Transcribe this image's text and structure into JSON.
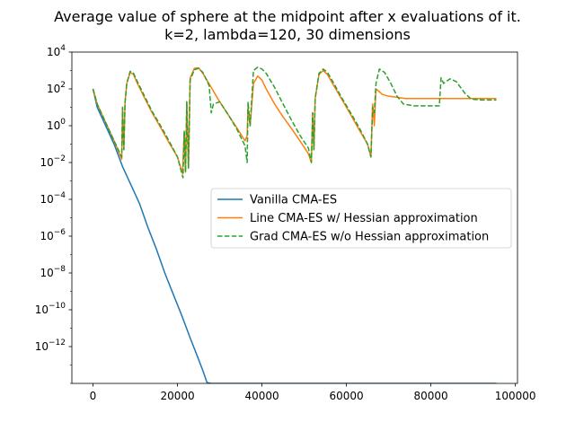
{
  "chart_data": {
    "type": "line",
    "title": "Average value of sphere at the midpoint after x evaluations of it.",
    "subtitle": "k=2, lambda=120, 30 dimensions",
    "xlabel": "",
    "ylabel": "",
    "xlim": [
      -5000,
      100500
    ],
    "ylim": [
      1e-14,
      10000.0
    ],
    "yscale": "log",
    "grid": false,
    "legend_position": "center-right",
    "x_ticks": [
      0,
      20000,
      40000,
      60000,
      80000,
      100000
    ],
    "x_tick_labels": [
      "0",
      "20000",
      "40000",
      "60000",
      "80000",
      "100000"
    ],
    "y_ticks": [
      {
        "exp": 4,
        "base": "10",
        "sup": "4"
      },
      {
        "exp": 2,
        "base": "10",
        "sup": "2"
      },
      {
        "exp": 0,
        "base": "10",
        "sup": "0"
      },
      {
        "exp": -2,
        "base": "10",
        "sup": "−2"
      },
      {
        "exp": -4,
        "base": "10",
        "sup": "−4"
      },
      {
        "exp": -6,
        "base": "10",
        "sup": "−6"
      },
      {
        "exp": -8,
        "base": "10",
        "sup": "−8"
      },
      {
        "exp": -10,
        "base": "10",
        "sup": "−10"
      },
      {
        "exp": -12,
        "base": "10",
        "sup": "−12"
      }
    ],
    "series": [
      {
        "name": "Vanilla CMA-ES",
        "color": "#1f77b4",
        "style": "solid",
        "points": [
          [
            0,
            100
          ],
          [
            1000,
            10
          ],
          [
            3000,
            1
          ],
          [
            5000,
            0.1
          ],
          [
            7000,
            0.006
          ],
          [
            9000,
            0.0006
          ],
          [
            11000,
            6e-05
          ],
          [
            13000,
            3e-06
          ],
          [
            15000,
            2e-07
          ],
          [
            17000,
            1e-08
          ],
          [
            19000,
            7e-10
          ],
          [
            21000,
            5e-11
          ],
          [
            23000,
            3e-12
          ],
          [
            25000,
            2e-13
          ],
          [
            26000,
            5e-14
          ],
          [
            27000,
            1.1e-14
          ],
          [
            28000,
            1e-14
          ],
          [
            95500,
            1e-14
          ]
        ]
      },
      {
        "name": "Line CMA-ES w/ Hessian approximation",
        "color": "#ff7f0e",
        "style": "solid",
        "points": [
          [
            0,
            100
          ],
          [
            1000,
            15
          ],
          [
            3000,
            1.5
          ],
          [
            5000,
            0.15
          ],
          [
            6800,
            0.015
          ],
          [
            7000,
            10
          ],
          [
            7300,
            0.05
          ],
          [
            7600,
            20
          ],
          [
            8000,
            200
          ],
          [
            8800,
            800
          ],
          [
            9600,
            600
          ],
          [
            10500,
            200
          ],
          [
            12000,
            40
          ],
          [
            14000,
            5
          ],
          [
            16000,
            0.8
          ],
          [
            18000,
            0.12
          ],
          [
            20000,
            0.02
          ],
          [
            21200,
            0.0025
          ],
          [
            21600,
            0.5
          ],
          [
            21900,
            0.003
          ],
          [
            22200,
            20
          ],
          [
            22600,
            0.005
          ],
          [
            23000,
            400
          ],
          [
            24000,
            1300
          ],
          [
            25000,
            1400
          ],
          [
            26000,
            700
          ],
          [
            28000,
            120
          ],
          [
            30000,
            20
          ],
          [
            32000,
            4
          ],
          [
            34000,
            0.8
          ],
          [
            36000,
            0.15
          ],
          [
            36500,
            0.3
          ],
          [
            36700,
            10
          ],
          [
            37200,
            1
          ],
          [
            38000,
            200
          ],
          [
            39000,
            500
          ],
          [
            40000,
            300
          ],
          [
            41000,
            100
          ],
          [
            43000,
            15
          ],
          [
            45000,
            3
          ],
          [
            47000,
            0.7
          ],
          [
            49000,
            0.15
          ],
          [
            51000,
            0.03
          ],
          [
            51700,
            0.01
          ],
          [
            52000,
            5
          ],
          [
            52300,
            0.05
          ],
          [
            52600,
            30
          ],
          [
            53500,
            600
          ],
          [
            54500,
            1000
          ],
          [
            55500,
            600
          ],
          [
            57000,
            150
          ],
          [
            59000,
            25
          ],
          [
            61000,
            4
          ],
          [
            63000,
            0.6
          ],
          [
            65000,
            0.1
          ],
          [
            65800,
            0.02
          ],
          [
            66200,
            15
          ],
          [
            66600,
            1
          ],
          [
            67000,
            100
          ],
          [
            67500,
            80
          ],
          [
            68500,
            50
          ],
          [
            70000,
            40
          ],
          [
            72000,
            35
          ],
          [
            74000,
            30
          ],
          [
            80000,
            30
          ],
          [
            88000,
            30
          ],
          [
            95500,
            30
          ]
        ]
      },
      {
        "name": "Grad CMA-ES w/o Hessian approximation",
        "color": "#2ca02c",
        "style": "dashed",
        "points": [
          [
            0,
            100
          ],
          [
            1000,
            15
          ],
          [
            3000,
            1.5
          ],
          [
            5000,
            0.15
          ],
          [
            6800,
            0.02
          ],
          [
            7000,
            10
          ],
          [
            7300,
            0.05
          ],
          [
            7600,
            20
          ],
          [
            8000,
            200
          ],
          [
            8800,
            900
          ],
          [
            9600,
            700
          ],
          [
            10500,
            250
          ],
          [
            12000,
            50
          ],
          [
            14000,
            6
          ],
          [
            16000,
            1
          ],
          [
            18000,
            0.15
          ],
          [
            20000,
            0.02
          ],
          [
            21300,
            0.0015
          ],
          [
            21600,
            0.5
          ],
          [
            21900,
            0.003
          ],
          [
            22200,
            20
          ],
          [
            22600,
            0.005
          ],
          [
            23000,
            300
          ],
          [
            24000,
            1100
          ],
          [
            25000,
            1300
          ],
          [
            26000,
            800
          ],
          [
            27500,
            150
          ],
          [
            28000,
            5
          ],
          [
            28500,
            15
          ],
          [
            30000,
            20
          ],
          [
            32000,
            4
          ],
          [
            34000,
            0.7
          ],
          [
            36000,
            0.08
          ],
          [
            36500,
            0.01
          ],
          [
            36700,
            20
          ],
          [
            37200,
            1
          ],
          [
            38000,
            1000
          ],
          [
            39000,
            1500
          ],
          [
            40000,
            1200
          ],
          [
            41000,
            700
          ],
          [
            43000,
            120
          ],
          [
            45000,
            15
          ],
          [
            47000,
            2
          ],
          [
            49000,
            0.3
          ],
          [
            51000,
            0.06
          ],
          [
            51700,
            0.01
          ],
          [
            52000,
            5
          ],
          [
            52300,
            0.05
          ],
          [
            52600,
            30
          ],
          [
            53500,
            700
          ],
          [
            54500,
            1200
          ],
          [
            55500,
            800
          ],
          [
            57000,
            200
          ],
          [
            59000,
            30
          ],
          [
            61000,
            5
          ],
          [
            63000,
            0.8
          ],
          [
            65000,
            0.1
          ],
          [
            65800,
            0.02
          ],
          [
            66200,
            10
          ],
          [
            66600,
            5
          ],
          [
            67000,
            200
          ],
          [
            67800,
            1200
          ],
          [
            69000,
            800
          ],
          [
            70500,
            200
          ],
          [
            72000,
            40
          ],
          [
            73500,
            15
          ],
          [
            76000,
            12
          ],
          [
            80000,
            12
          ],
          [
            82000,
            12
          ],
          [
            82400,
            400
          ],
          [
            83000,
            200
          ],
          [
            84500,
            350
          ],
          [
            86000,
            250
          ],
          [
            88000,
            60
          ],
          [
            89500,
            28
          ],
          [
            92000,
            25
          ],
          [
            95500,
            25
          ]
        ]
      }
    ]
  }
}
